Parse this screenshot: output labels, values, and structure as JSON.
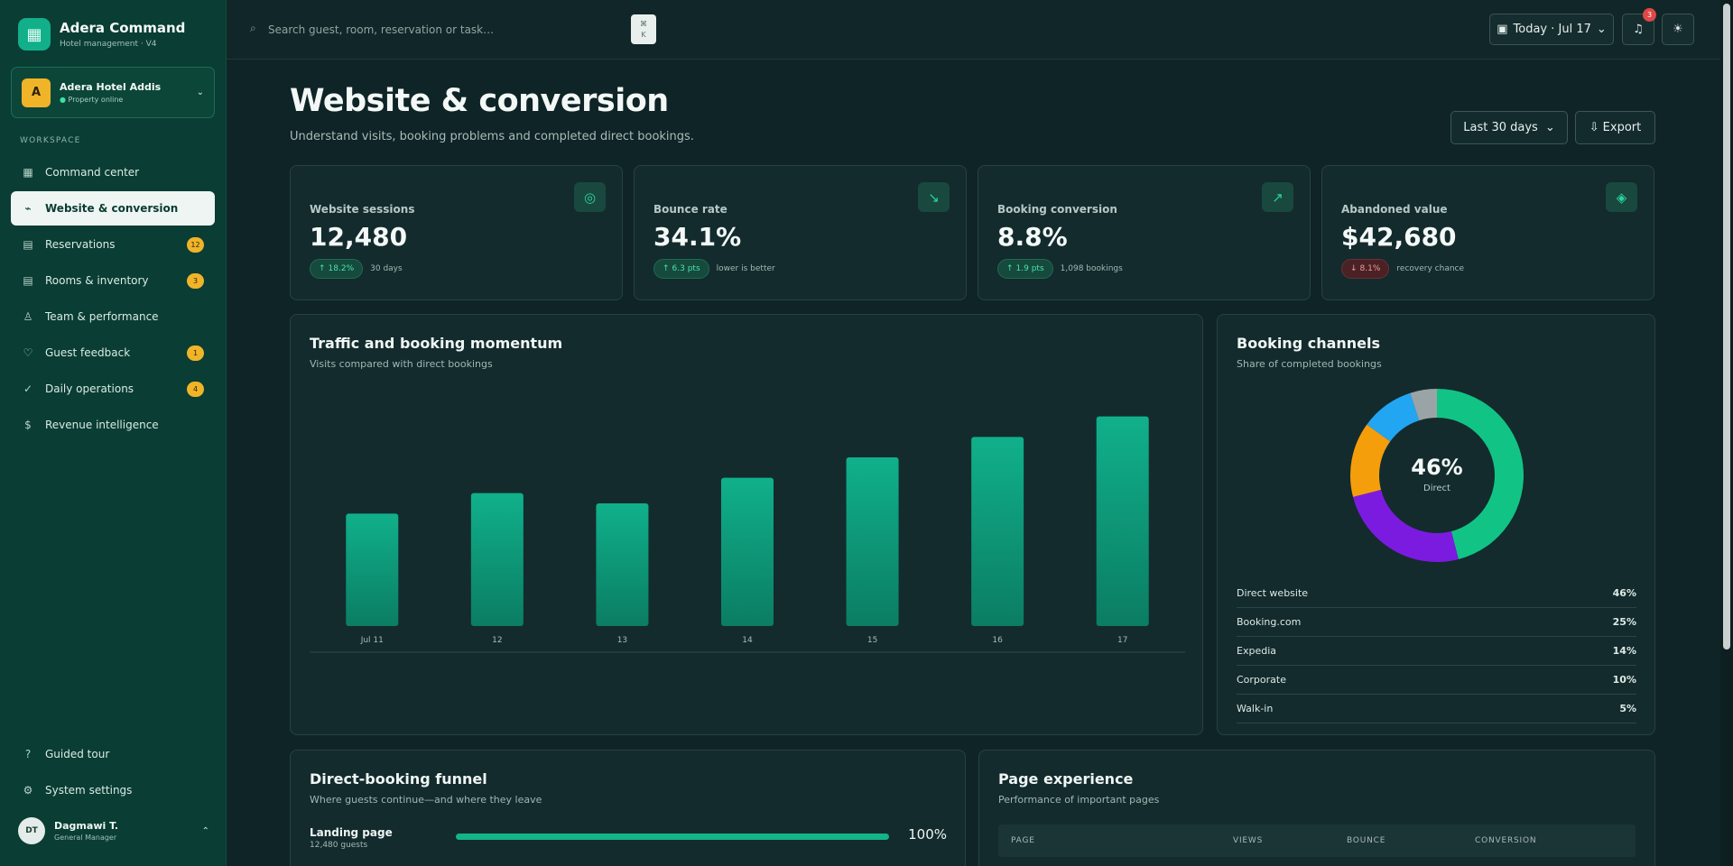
{
  "app": {
    "name": "Adera Command",
    "subtitle": "Hotel management · V4",
    "logo_icon": "grid-building-icon"
  },
  "property": {
    "initial": "A",
    "name": "Adera Hotel Addis",
    "status": "Property online"
  },
  "sidebar": {
    "section_label": "WORKSPACE",
    "items": [
      {
        "label": "Command center",
        "icon": "dashboard-icon",
        "glyph": "▦",
        "badge": ""
      },
      {
        "label": "Website & conversion",
        "icon": "trend-icon",
        "glyph": "⌁",
        "badge": "",
        "active": true
      },
      {
        "label": "Reservations",
        "icon": "calendar-icon",
        "glyph": "▤",
        "badge": "12"
      },
      {
        "label": "Rooms & inventory",
        "icon": "rooms-icon",
        "glyph": "▤",
        "badge": "3"
      },
      {
        "label": "Team & performance",
        "icon": "person-icon",
        "glyph": "♙",
        "badge": ""
      },
      {
        "label": "Guest feedback",
        "icon": "heart-icon",
        "glyph": "♡",
        "badge": "1"
      },
      {
        "label": "Daily operations",
        "icon": "check-icon",
        "glyph": "✓",
        "badge": "4"
      },
      {
        "label": "Revenue intelligence",
        "icon": "dollar-icon",
        "glyph": "$",
        "badge": ""
      }
    ],
    "bottom_items": [
      {
        "label": "Guided tour",
        "icon": "help-icon",
        "glyph": "?"
      },
      {
        "label": "System settings",
        "icon": "gear-icon",
        "glyph": "⚙"
      }
    ]
  },
  "user": {
    "initials": "DT",
    "name": "Dagmawi T.",
    "role": "General Manager"
  },
  "topbar": {
    "search_placeholder": "Search guest, room, reservation or task…",
    "shortcut_top": "⌘",
    "shortcut_bottom": "K",
    "date_label": "Today · Jul 17",
    "notification_count": "3"
  },
  "page": {
    "title": "Website & conversion",
    "subtitle": "Understand visits, booking problems and completed direct bookings.",
    "period": "Last 30 days",
    "export_label": "Export"
  },
  "kpis": [
    {
      "label": "Website sessions",
      "value": "12,480",
      "change": "18.2%",
      "direction": "up",
      "note": "30 days",
      "icon": "target-icon",
      "glyph": "◎"
    },
    {
      "label": "Bounce rate",
      "value": "34.1%",
      "change": "6.3 pts",
      "direction": "up",
      "note": "lower is better",
      "icon": "arrow-down-right-icon",
      "glyph": "↘"
    },
    {
      "label": "Booking conversion",
      "value": "8.8%",
      "change": "1.9 pts",
      "direction": "up",
      "note": "1,098 bookings",
      "icon": "arrow-up-right-icon",
      "glyph": "↗"
    },
    {
      "label": "Abandoned value",
      "value": "$42,680",
      "change": "8.1%",
      "direction": "down",
      "note": "recovery chance",
      "icon": "diamond-icon",
      "glyph": "◈"
    }
  ],
  "traffic": {
    "title": "Traffic and booking momentum",
    "subtitle": "Visits compared with direct bookings"
  },
  "chart_data": {
    "type": "bar",
    "categories": [
      "Jul 11",
      "12",
      "13",
      "14",
      "15",
      "16",
      "17"
    ],
    "values": [
      44,
      52,
      48,
      58,
      66,
      74,
      82
    ],
    "ylim": [
      0,
      90
    ],
    "grid": false,
    "bar_color": "#10a382"
  },
  "channels": {
    "title": "Booking channels",
    "subtitle": "Share of completed bookings",
    "center_value": "46%",
    "center_label": "Direct",
    "items": [
      {
        "name": "Direct website",
        "share": 46,
        "label": "46%",
        "color": "#11c486"
      },
      {
        "name": "Booking.com",
        "share": 25,
        "label": "25%",
        "color": "#7c1be0"
      },
      {
        "name": "Expedia",
        "share": 14,
        "label": "14%",
        "color": "#f59e0b"
      },
      {
        "name": "Corporate",
        "share": 10,
        "label": "10%",
        "color": "#22a6f2"
      },
      {
        "name": "Walk-in",
        "share": 5,
        "label": "5%",
        "color": "#9aa4a6"
      }
    ]
  },
  "funnel": {
    "title": "Direct-booking funnel",
    "subtitle": "Where guests continue—and where they leave",
    "rows": [
      {
        "name": "Landing page",
        "count": "12,480 guests",
        "pct": "100%",
        "fill": 1.0
      }
    ]
  },
  "page_experience": {
    "title": "Page experience",
    "subtitle": "Performance of important pages",
    "columns": [
      "PAGE",
      "VIEWS",
      "BOUNCE",
      "CONVERSION"
    ]
  }
}
